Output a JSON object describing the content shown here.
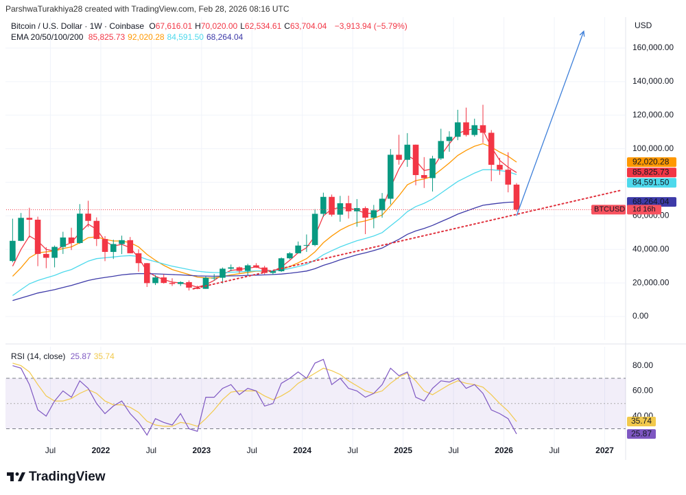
{
  "header": {
    "credit": "ParshwaTurakhiya28 created with TradingView.com, Feb 28, 2026 08:16 UTC"
  },
  "footer": {
    "logo": "TradingView"
  },
  "chart_data": [
    {
      "type": "candlestick",
      "title": "Bitcoin / U.S. Dollar · 1W · Coinbase",
      "ohlc": [
        {
          "label": "O",
          "value": "67,616.01"
        },
        {
          "label": "H",
          "value": "70,020.00"
        },
        {
          "label": "L",
          "value": "62,534.61"
        },
        {
          "label": "C",
          "value": "63,704.04"
        }
      ],
      "change": "−3,913.94 (−5.79%)",
      "indicator": "EMA 20/50/100/200",
      "axis_label": "USD",
      "symbol": "BTCUSD",
      "countdown": "1d 16h",
      "up_color": "#089981",
      "down_color": "#f23645",
      "x": [
        "2021-02",
        "2021-03",
        "2021-04",
        "2021-05",
        "2021-06",
        "2021-07",
        "2021-08",
        "2021-09",
        "2021-10",
        "2021-11",
        "2021-12",
        "2022-01",
        "2022-02",
        "2022-03",
        "2022-04",
        "2022-05",
        "2022-06",
        "2022-07",
        "2022-08",
        "2022-09",
        "2022-10",
        "2022-11",
        "2022-12",
        "2023-01",
        "2023-02",
        "2023-03",
        "2023-04",
        "2023-05",
        "2023-06",
        "2023-07",
        "2023-08",
        "2023-09",
        "2023-10",
        "2023-11",
        "2023-12",
        "2024-01",
        "2024-02",
        "2024-03",
        "2024-04",
        "2024-05",
        "2024-06",
        "2024-07",
        "2024-08",
        "2024-09",
        "2024-10",
        "2024-11",
        "2024-12",
        "2025-01",
        "2025-02",
        "2025-03",
        "2025-04",
        "2025-05",
        "2025-06",
        "2025-07",
        "2025-08",
        "2025-09",
        "2025-10",
        "2025-11",
        "2025-12",
        "2026-01",
        "2026-02"
      ],
      "open": [
        33100,
        45100,
        58800,
        57700,
        37300,
        35000,
        41500,
        47100,
        43800,
        61300,
        57000,
        46200,
        38500,
        43200,
        45500,
        37700,
        31800,
        19900,
        23300,
        20000,
        19400,
        20500,
        17200,
        16500,
        23100,
        23100,
        28500,
        29300,
        27200,
        30500,
        29200,
        26000,
        27000,
        34700,
        37700,
        42300,
        42600,
        61200,
        71300,
        60700,
        67500,
        62700,
        64600,
        58900,
        63300,
        70200,
        96400,
        93400,
        102400,
        84300,
        82500,
        94200,
        104600,
        107100,
        115700,
        108200,
        114000,
        109500,
        90400,
        87500,
        78600
      ],
      "high": [
        58300,
        61700,
        64800,
        59500,
        41300,
        42300,
        50500,
        52900,
        67000,
        69000,
        59100,
        47900,
        45800,
        48200,
        47400,
        40000,
        31900,
        24700,
        25200,
        22800,
        21000,
        21500,
        18400,
        23900,
        25300,
        29200,
        31000,
        29800,
        31400,
        31800,
        30200,
        27500,
        35200,
        38400,
        44700,
        48900,
        64000,
        73800,
        72700,
        71900,
        72000,
        70000,
        65600,
        66500,
        73600,
        99800,
        108300,
        109300,
        102500,
        95000,
        95800,
        111900,
        110400,
        123200,
        124500,
        117900,
        126200,
        111100,
        94600,
        97900,
        79500
      ],
      "low": [
        32300,
        44900,
        47000,
        30000,
        28800,
        29300,
        37300,
        39600,
        43300,
        53300,
        42000,
        33000,
        34300,
        37200,
        37700,
        26700,
        17600,
        18800,
        19600,
        18200,
        18200,
        15500,
        16300,
        16500,
        21400,
        19600,
        27000,
        25800,
        24800,
        28900,
        25200,
        24900,
        26600,
        34100,
        37600,
        38500,
        41900,
        59300,
        59600,
        56500,
        58400,
        53500,
        49100,
        52600,
        58900,
        66800,
        90500,
        89200,
        78200,
        76600,
        74500,
        93300,
        98200,
        105100,
        107300,
        107200,
        103500,
        80600,
        84400,
        74000,
        62534.61
      ],
      "close": [
        45100,
        58800,
        57700,
        37300,
        35000,
        41500,
        47100,
        43800,
        61300,
        57000,
        46200,
        38500,
        43200,
        45500,
        37700,
        31800,
        19900,
        23300,
        20000,
        19400,
        20500,
        17200,
        16500,
        23100,
        23100,
        28500,
        29300,
        27200,
        30500,
        29200,
        26000,
        27000,
        34700,
        37700,
        42300,
        42600,
        61200,
        71300,
        60700,
        67500,
        62700,
        64600,
        58900,
        63300,
        70200,
        96400,
        93400,
        102400,
        84300,
        82500,
        94200,
        104600,
        107100,
        115700,
        108200,
        114000,
        109500,
        90400,
        87500,
        78600,
        63704.04
      ],
      "series": [
        {
          "color": "#f23645",
          "last_label": "85,825.73",
          "values": [
            30000,
            40000,
            48000,
            45000,
            40000,
            39000,
            42000,
            44000,
            50000,
            55000,
            52000,
            45000,
            42000,
            43000,
            41000,
            35000,
            27000,
            24000,
            22000,
            20500,
            20000,
            19000,
            17500,
            19000,
            21500,
            25000,
            27500,
            28000,
            28800,
            29500,
            28000,
            27000,
            29500,
            33500,
            38000,
            41000,
            48000,
            60000,
            64000,
            65000,
            64500,
            63500,
            61500,
            61500,
            64500,
            77000,
            88000,
            96000,
            93000,
            87000,
            88000,
            96000,
            103000,
            109000,
            111000,
            112000,
            111000,
            101000,
            93000,
            89000,
            85825.73
          ]
        },
        {
          "color": "#ff9800",
          "last_label": "92,020.28",
          "values": [
            24000,
            29000,
            35000,
            38000,
            38500,
            39000,
            40500,
            41500,
            44000,
            47000,
            47500,
            46000,
            45000,
            45000,
            44000,
            41500,
            37000,
            33500,
            30500,
            28000,
            26500,
            25000,
            23500,
            23000,
            23000,
            23800,
            24800,
            25500,
            26300,
            27000,
            27000,
            27000,
            28000,
            29800,
            32000,
            34500,
            38500,
            44000,
            48000,
            51500,
            54000,
            56000,
            57000,
            58500,
            60500,
            66000,
            72000,
            78500,
            81000,
            82000,
            83500,
            87500,
            91500,
            96000,
            99000,
            101500,
            103000,
            101000,
            98000,
            95500,
            92020.28
          ]
        },
        {
          "color": "#4dd9ec",
          "last_label": "84,591.50",
          "values": [
            12500,
            16000,
            19500,
            21500,
            23000,
            24500,
            26500,
            28000,
            30500,
            33000,
            34500,
            35000,
            35500,
            36000,
            36300,
            35800,
            34000,
            32700,
            31300,
            30000,
            29000,
            28000,
            27000,
            26500,
            26200,
            26200,
            26400,
            26600,
            26900,
            27200,
            27200,
            27200,
            27700,
            28600,
            29800,
            31100,
            33500,
            36800,
            39200,
            41500,
            43400,
            45200,
            46500,
            48000,
            50000,
            54000,
            58000,
            62500,
            65500,
            67500,
            70000,
            73500,
            77000,
            80500,
            83000,
            85500,
            87500,
            87500,
            87000,
            86300,
            84591.5
          ]
        },
        {
          "color": "#3d3aa8",
          "last_label": "68,264.04",
          "values": [
            9500,
            11000,
            12500,
            14000,
            15000,
            16000,
            17300,
            18500,
            20000,
            21500,
            22500,
            23300,
            24000,
            24800,
            25300,
            25600,
            25500,
            25400,
            25200,
            25000,
            24800,
            24500,
            24200,
            24100,
            24000,
            24100,
            24200,
            24300,
            24500,
            24700,
            24800,
            25000,
            25300,
            25800,
            26400,
            27100,
            28500,
            30500,
            32000,
            33800,
            35300,
            36800,
            38000,
            39300,
            40800,
            43500,
            46000,
            49000,
            51000,
            52500,
            54300,
            56500,
            58700,
            61000,
            62800,
            64600,
            66300,
            67000,
            67600,
            68100,
            68264.04
          ]
        }
      ],
      "trendline": {
        "color": "#e0303c",
        "from": {
          "x": "2022-12",
          "y": 16500
        },
        "to": {
          "x": "2027-03",
          "y": 75300
        }
      },
      "arrow": {
        "color": "#3d7fd9",
        "from": {
          "x": "2026-02",
          "y": 60000
        },
        "to": {
          "x": "2026-10",
          "y": 170000
        }
      },
      "xlim": [
        "2021-01",
        "2027-03"
      ],
      "xticks": [
        {
          "value": "2021-07",
          "label": "Jul"
        },
        {
          "value": "2022-01",
          "label": "2022"
        },
        {
          "value": "2022-07",
          "label": "Jul"
        },
        {
          "value": "2023-01",
          "label": "2023"
        },
        {
          "value": "2023-07",
          "label": "Jul"
        },
        {
          "value": "2024-01",
          "label": "2024"
        },
        {
          "value": "2024-07",
          "label": "Jul"
        },
        {
          "value": "2025-01",
          "label": "2025"
        },
        {
          "value": "2025-07",
          "label": "Jul"
        },
        {
          "value": "2026-01",
          "label": "2026"
        },
        {
          "value": "2026-07",
          "label": "Jul"
        },
        {
          "value": "2027-01",
          "label": "2027"
        }
      ],
      "ylim": [
        -13900,
        178400
      ],
      "yticks": [
        {
          "value": 0,
          "label": "0.00"
        },
        {
          "value": 20000,
          "label": "20,000.00"
        },
        {
          "value": 40000,
          "label": "40,000.00"
        },
        {
          "value": 60000,
          "label": "60,000.00"
        },
        {
          "value": 80000,
          "label": "80,000.00"
        },
        {
          "value": 100000,
          "label": "100,000.00"
        },
        {
          "value": 120000,
          "label": "120,000.00"
        },
        {
          "value": 140000,
          "label": "140,000.00"
        },
        {
          "value": 160000,
          "label": "160,000.00"
        }
      ],
      "grid": true
    },
    {
      "type": "line",
      "title": "RSI (14, close)",
      "series": [
        {
          "color": "#7e57c2",
          "values": [
            80,
            78,
            65,
            45,
            40,
            52,
            60,
            55,
            68,
            62,
            50,
            42,
            48,
            52,
            42,
            35,
            25,
            38,
            35,
            33,
            42,
            30,
            28,
            55,
            55,
            62,
            65,
            57,
            62,
            60,
            48,
            50,
            66,
            70,
            75,
            70,
            82,
            85,
            65,
            70,
            62,
            60,
            55,
            58,
            65,
            78,
            72,
            75,
            55,
            52,
            62,
            68,
            67,
            70,
            62,
            65,
            58,
            45,
            42,
            38,
            25.87
          ]
        },
        {
          "color": "#f2c94c",
          "values": [
            82,
            80,
            75,
            65,
            56,
            52,
            52,
            54,
            58,
            61,
            58,
            52,
            49,
            49,
            47,
            43,
            36,
            33,
            32,
            32,
            35,
            34,
            32,
            38,
            45,
            53,
            59,
            60,
            60,
            60,
            56,
            53,
            56,
            60,
            66,
            70,
            74,
            78,
            76,
            73,
            68,
            64,
            60,
            58,
            60,
            66,
            71,
            74,
            68,
            60,
            57,
            61,
            65,
            68,
            66,
            65,
            63,
            57,
            50,
            44,
            35.74
          ]
        }
      ],
      "bands": [
        30,
        70
      ],
      "midline": 50,
      "band_color": "#7e57c2",
      "ylim": [
        8,
        95
      ],
      "yticks": [
        {
          "value": 40,
          "label": "40.00"
        },
        {
          "value": 60,
          "label": "60.00"
        },
        {
          "value": 80,
          "label": "80.00"
        }
      ]
    }
  ]
}
